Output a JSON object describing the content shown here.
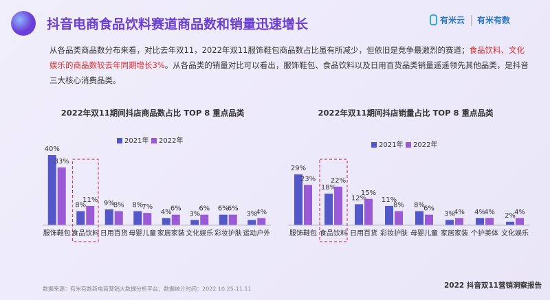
{
  "header": {
    "title": "抖音电商食品饮料赛道商品数和销量迅速增长",
    "logos": [
      "有米云",
      "有米有数"
    ]
  },
  "paragraph": [
    "从各品类商品数分布来看，对比去年双11，2022年双11服饰鞋包商品数占比虽有所减少，但依旧是竞争最激烈的赛道；",
    "食品饮料、文化娱乐的商品数较去年同期增长3%",
    "。从各品类的销量对比可以看出，服饰鞋包、食品饮料以及日用百货品类销量遥遥领先其他品类，是抖音三大核心消费品类。"
  ],
  "footer": {
    "source": "数据来源：有米有数新电商营销大数据分析平台，数据统计时间：2022.10.25-11.11",
    "report": "2022 抖音双11营销洞察报告"
  },
  "chart_data": [
    {
      "type": "bar",
      "title": "2022年双11期间抖店商品数占比 TOP 8 重点品类",
      "categories": [
        "服饰鞋包",
        "食品饮料",
        "日用百货",
        "母婴儿童",
        "家居家装",
        "文化娱乐",
        "彩妆护肤",
        "运动户外"
      ],
      "series": [
        {
          "name": "2021年",
          "color": "#5457c8",
          "values": [
            40,
            8,
            9,
            8,
            4,
            3,
            6,
            3
          ],
          "value_labels": [
            "40%",
            "8%",
            "9%",
            "8%",
            "4%",
            "3%",
            "6%",
            "3%"
          ]
        },
        {
          "name": "2022年",
          "color": "#9a5ad6",
          "values": [
            33,
            11,
            8,
            7,
            6,
            6,
            6,
            4
          ],
          "value_labels": [
            "33%",
            "11%",
            "8%",
            "7%",
            "6%",
            "6%",
            "6%",
            "4%"
          ]
        }
      ]
    },
    {
      "type": "bar",
      "title": "2022年双11期间抖店销量占比 TOP 8 重点品类",
      "categories": [
        "服饰鞋包",
        "食品饮料",
        "日用百货",
        "彩妆护肤",
        "母婴儿童",
        "家居家装",
        "个护美体",
        "文化娱乐"
      ],
      "series": [
        {
          "name": "2021年",
          "color": "#5457c8",
          "values": [
            29,
            18,
            12,
            11,
            8,
            3,
            4,
            2
          ],
          "value_labels": [
            "29%",
            "18%",
            "12%",
            "11%",
            "8%",
            "3%",
            "4%",
            "2%"
          ]
        },
        {
          "name": "2022年",
          "color": "#9a5ad6",
          "values": [
            23,
            22,
            15,
            8,
            6,
            4,
            4,
            4
          ],
          "value_labels": [
            "23%",
            "22%",
            "15%",
            "8%",
            "6%",
            "4%",
            "4%",
            "4%"
          ]
        }
      ]
    }
  ]
}
